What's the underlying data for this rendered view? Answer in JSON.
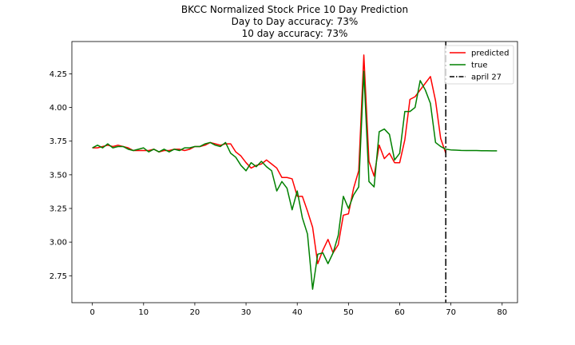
{
  "chart_data": {
    "type": "line",
    "title": "BKCC Normalized Stock Price 10 Day Prediction",
    "subtitle_lines": [
      "Day to Day accuracy: 73%",
      "10 day accuracy: 73%"
    ],
    "xlabel": "",
    "ylabel": "",
    "xlim": [
      -4,
      83
    ],
    "ylim": [
      2.55,
      4.49
    ],
    "x_ticks": [
      0,
      10,
      20,
      30,
      40,
      50,
      60,
      70,
      80
    ],
    "x_tick_labels": [
      "0",
      "10",
      "20",
      "30",
      "40",
      "50",
      "60",
      "70",
      "80"
    ],
    "y_ticks": [
      2.75,
      3.0,
      3.25,
      3.5,
      3.75,
      4.0,
      4.25
    ],
    "y_tick_labels": [
      "2.75",
      "3.00",
      "3.25",
      "3.50",
      "3.75",
      "4.00",
      "4.25"
    ],
    "grid": false,
    "legend_position": "top-right",
    "series": [
      {
        "name": "predicted",
        "color": "#ff0000",
        "x": [
          0,
          1,
          2,
          3,
          4,
          5,
          6,
          7,
          8,
          9,
          10,
          11,
          12,
          13,
          14,
          15,
          16,
          17,
          18,
          19,
          20,
          21,
          22,
          23,
          24,
          25,
          26,
          27,
          28,
          29,
          30,
          31,
          32,
          33,
          34,
          35,
          36,
          37,
          38,
          39,
          40,
          41,
          42,
          43,
          44,
          45,
          46,
          47,
          48,
          49,
          50,
          51,
          52,
          53,
          54,
          55,
          56,
          57,
          58,
          59,
          60,
          61,
          62,
          63,
          64,
          65,
          66,
          67,
          68,
          69
        ],
        "values": [
          3.7,
          3.7,
          3.71,
          3.72,
          3.71,
          3.72,
          3.71,
          3.7,
          3.68,
          3.68,
          3.68,
          3.68,
          3.69,
          3.67,
          3.68,
          3.68,
          3.69,
          3.69,
          3.68,
          3.69,
          3.71,
          3.71,
          3.72,
          3.74,
          3.73,
          3.72,
          3.73,
          3.73,
          3.67,
          3.64,
          3.59,
          3.55,
          3.57,
          3.58,
          3.61,
          3.58,
          3.55,
          3.48,
          3.48,
          3.47,
          3.34,
          3.34,
          3.23,
          3.11,
          2.84,
          2.94,
          3.02,
          2.92,
          2.98,
          3.2,
          3.21,
          3.4,
          3.53,
          4.39,
          3.6,
          3.49,
          3.72,
          3.62,
          3.66,
          3.59,
          3.59,
          3.76,
          4.06,
          4.08,
          4.13,
          4.18,
          4.23,
          4.05,
          3.77,
          3.66
        ]
      },
      {
        "name": "true",
        "color": "#008000",
        "x": [
          0,
          1,
          2,
          3,
          4,
          5,
          6,
          7,
          8,
          9,
          10,
          11,
          12,
          13,
          14,
          15,
          16,
          17,
          18,
          19,
          20,
          21,
          22,
          23,
          24,
          25,
          26,
          27,
          28,
          29,
          30,
          31,
          32,
          33,
          34,
          35,
          36,
          37,
          38,
          39,
          40,
          41,
          42,
          43,
          44,
          45,
          46,
          47,
          48,
          49,
          50,
          51,
          52,
          53,
          54,
          55,
          56,
          57,
          58,
          59,
          60,
          61,
          62,
          63,
          64,
          65,
          66,
          67,
          68,
          69,
          70,
          71,
          72,
          73,
          74,
          75,
          76,
          77,
          78,
          79
        ],
        "values": [
          3.7,
          3.72,
          3.7,
          3.73,
          3.7,
          3.71,
          3.71,
          3.69,
          3.68,
          3.69,
          3.7,
          3.67,
          3.69,
          3.67,
          3.69,
          3.67,
          3.69,
          3.68,
          3.7,
          3.7,
          3.71,
          3.71,
          3.73,
          3.74,
          3.72,
          3.71,
          3.74,
          3.66,
          3.63,
          3.57,
          3.53,
          3.59,
          3.56,
          3.6,
          3.56,
          3.53,
          3.38,
          3.45,
          3.4,
          3.24,
          3.38,
          3.18,
          3.06,
          2.65,
          2.91,
          2.92,
          2.84,
          2.92,
          3.05,
          3.34,
          3.25,
          3.35,
          3.41,
          4.27,
          3.45,
          3.41,
          3.82,
          3.84,
          3.8,
          3.61,
          3.66,
          3.97,
          3.97,
          4.0,
          4.2,
          4.13,
          4.03,
          3.74,
          3.71,
          3.69,
          3.685,
          3.683,
          3.681,
          3.68,
          3.68,
          3.68,
          3.679,
          3.679,
          3.678,
          3.678
        ]
      }
    ],
    "vline": {
      "name": "april 27",
      "x": 69,
      "color": "#000000",
      "style": "dash-dot"
    }
  }
}
